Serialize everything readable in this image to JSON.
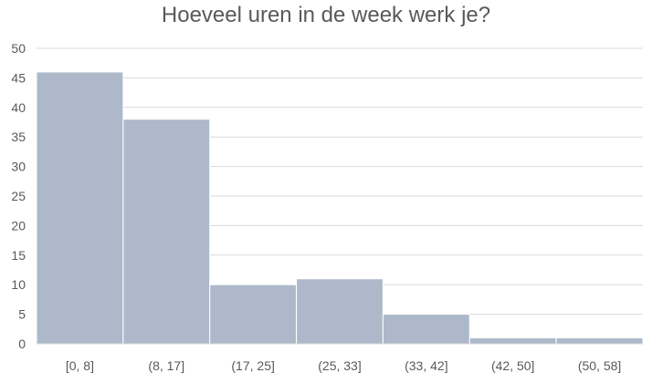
{
  "chart_data": {
    "type": "bar",
    "title": "Hoeveel uren in de week werk je?",
    "xlabel": "",
    "ylabel": "",
    "categories": [
      "[0, 8]",
      "(8, 17]",
      "(17, 25]",
      "(25, 33]",
      "(33, 42]",
      "(42, 50]",
      "(50, 58]"
    ],
    "values": [
      46,
      38,
      10,
      11,
      5,
      1,
      1
    ],
    "ylim": [
      0,
      50
    ],
    "yticks": [
      0,
      5,
      10,
      15,
      20,
      25,
      30,
      35,
      40,
      45,
      50
    ],
    "grid": true,
    "legend": "none",
    "bar_color": "#adb9ca",
    "gridline_color": "#d9d9d9",
    "text_color": "#595959"
  }
}
